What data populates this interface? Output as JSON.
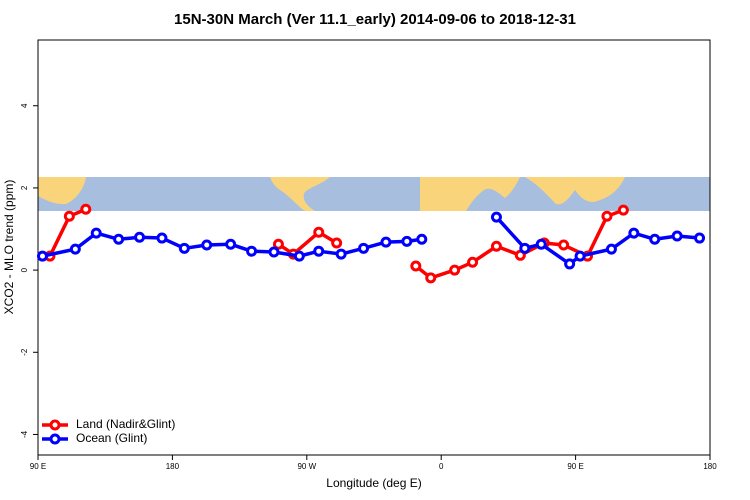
{
  "chart_data": {
    "type": "line",
    "title": "15N-30N March (Ver 11.1_early)   2014-09-06 to 2018-12-31",
    "x_label": "Longitude (deg E)",
    "y_label": "XCO2 - MLO trend (ppm)",
    "xlim": [
      90,
      540
    ],
    "ylim": [
      -4.5,
      5.6
    ],
    "xticks": [
      {
        "value": 90,
        "label": "90 E"
      },
      180,
      {
        "value": 270,
        "label": "90 W"
      },
      {
        "value": 360,
        "label": "0"
      },
      {
        "value": 450,
        "label": "90 E"
      },
      {
        "value": 540,
        "label": "180"
      }
    ],
    "yticks": [
      -4,
      -2,
      0,
      2,
      4
    ],
    "legend": "bottomleft",
    "series": [
      {
        "name": "Land (Nadir&Glint)",
        "color": "#ff0000",
        "x": [
          98,
          111,
          122,
          null,
          251,
          261,
          278,
          290,
          null,
          343,
          353,
          369,
          381,
          397,
          413,
          429,
          442,
          458,
          471,
          482
        ],
        "values": [
          0.34,
          1.31,
          1.48,
          null,
          0.63,
          0.39,
          0.92,
          0.66,
          null,
          0.1,
          -0.19,
          0.0,
          0.19,
          0.58,
          0.36,
          0.66,
          0.61,
          0.34,
          1.31,
          1.46
        ]
      },
      {
        "name": "Ocean (Glint)",
        "color": "#0000ff",
        "x": [
          93,
          115,
          129,
          144,
          158,
          173,
          188,
          203,
          219,
          233,
          248,
          265,
          278,
          293,
          308,
          323,
          337,
          347,
          null,
          397,
          416,
          427,
          446,
          453,
          474,
          489,
          503,
          518,
          533
        ],
        "values": [
          0.34,
          0.51,
          0.9,
          0.75,
          0.8,
          0.78,
          0.53,
          0.61,
          0.63,
          0.46,
          0.44,
          0.34,
          0.46,
          0.39,
          0.53,
          0.68,
          0.7,
          0.75,
          null,
          1.29,
          0.53,
          0.63,
          0.15,
          0.34,
          0.51,
          0.9,
          0.75,
          0.83,
          0.78
        ]
      }
    ]
  }
}
